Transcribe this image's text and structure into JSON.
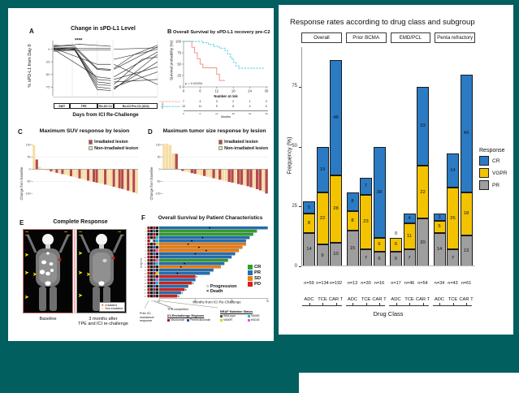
{
  "teal_bg": "#015f5f",
  "icons": {
    "arrow": "➤",
    "square": "■",
    "progression": "○",
    "death": "×"
  },
  "left_figure": {
    "panelE": {
      "letter": "E",
      "title": "Complete Response",
      "caption_left": "Baseline",
      "caption_right_1": "3 months after",
      "caption_right_2": "TPE and ICI re-challenge",
      "legend": [
        {
          "label": "Irradiated",
          "color": "#ee1111"
        },
        {
          "label": "Non-irradiated",
          "color": "#ffe600"
        }
      ]
    }
  },
  "chart_data": [
    {
      "id": "A",
      "type": "line",
      "letter": "A",
      "title": "Change in sPD-L1 Level",
      "significance": "****",
      "ylabel": "% sPD-L1 from Day 0",
      "xlabel": "Days from ICI Re-Challenge",
      "yticks": [
        0,
        -25,
        -50,
        -75
      ],
      "timeline_phases": [
        "SWT",
        "TPE",
        "Re-ICI C1",
        "Re-ICI Pre-C2 (ICI2)"
      ],
      "phase_widths": [
        16,
        26,
        16,
        42
      ],
      "lines": [
        [
          [
            0,
            3
          ],
          [
            20,
            1
          ],
          [
            42,
            -80
          ],
          [
            55,
            -82
          ]
        ],
        [
          [
            0,
            1
          ],
          [
            20,
            0
          ],
          [
            42,
            -75
          ],
          [
            55,
            -78
          ]
        ],
        [
          [
            0,
            0
          ],
          [
            20,
            -1
          ],
          [
            42,
            -70
          ],
          [
            55,
            -72
          ]
        ],
        [
          [
            0,
            -2
          ],
          [
            20,
            0
          ],
          [
            42,
            -65
          ],
          [
            55,
            -68
          ]
        ],
        [
          [
            0,
            2
          ],
          [
            20,
            1
          ],
          [
            42,
            -60
          ],
          [
            55,
            -62
          ]
        ],
        [
          [
            0,
            5
          ],
          [
            20,
            3
          ],
          [
            42,
            -40
          ],
          [
            55,
            -42
          ]
        ],
        [
          [
            0,
            8
          ],
          [
            20,
            6
          ],
          [
            42,
            -38
          ],
          [
            55,
            -40
          ]
        ],
        [
          [
            0,
            0
          ],
          [
            20,
            2
          ],
          [
            55,
            2
          ]
        ],
        [
          [
            0,
            -4
          ],
          [
            20,
            -2
          ],
          [
            55,
            -1
          ]
        ],
        [
          [
            0,
            6
          ],
          [
            25,
            10
          ],
          [
            55,
            6
          ]
        ],
        [
          [
            0,
            2
          ],
          [
            42,
            -30
          ],
          [
            55,
            -30
          ]
        ],
        [
          [
            0,
            0
          ],
          [
            42,
            -55
          ],
          [
            55,
            -58
          ]
        ],
        [
          [
            58,
            -80
          ],
          [
            100,
            -10
          ]
        ],
        [
          [
            58,
            -78
          ],
          [
            100,
            -25
          ]
        ],
        [
          [
            58,
            -75
          ],
          [
            100,
            -45
          ]
        ],
        [
          [
            58,
            -70
          ],
          [
            85,
            -20
          ],
          [
            100,
            -15
          ]
        ],
        [
          [
            58,
            -65
          ],
          [
            100,
            -60
          ]
        ],
        [
          [
            58,
            -60
          ],
          [
            100,
            -35
          ]
        ],
        [
          [
            58,
            -40
          ],
          [
            100,
            5
          ]
        ],
        [
          [
            58,
            -38
          ],
          [
            78,
            -10
          ],
          [
            100,
            8
          ]
        ],
        [
          [
            58,
            0
          ],
          [
            100,
            3
          ]
        ],
        [
          [
            58,
            -55
          ],
          [
            100,
            -5
          ]
        ],
        [
          [
            58,
            -30
          ],
          [
            100,
            -70
          ]
        ],
        [
          [
            58,
            -20
          ],
          [
            100,
            0
          ]
        ]
      ]
    },
    {
      "id": "B",
      "type": "line",
      "letter": "B",
      "title": "Overall Survival by sPD-L1 recovery pre-C2",
      "ylabel": "Survival probability (%)",
      "xlabel": "Months",
      "yticks": [
        100,
        75,
        50,
        25,
        0
      ],
      "xticks": [
        0,
        6,
        12,
        18,
        24,
        30
      ],
      "pvalue": "p = 0.00034",
      "risk_title": "Number at risk",
      "strata_axis_label": "Strata",
      "series": [
        {
          "name": "Incomplete recovery",
          "color": "#f2928c",
          "dashed": false,
          "steps": [
            [
              0,
              100
            ],
            [
              3,
              87
            ],
            [
              4,
              75
            ],
            [
              5,
              62
            ],
            [
              6,
              50
            ],
            [
              7,
              42
            ],
            [
              12,
              28
            ],
            [
              13,
              14
            ],
            [
              15,
              14
            ]
          ],
          "at_risk": [
            7,
            4,
            3,
            2,
            1,
            0
          ]
        },
        {
          "name": "Complete recovery",
          "color": "#30c7d6",
          "dashed": true,
          "steps": [
            [
              0,
              100
            ],
            [
              7,
              97
            ],
            [
              9,
              93
            ],
            [
              11,
              89
            ],
            [
              13,
              85
            ],
            [
              15,
              80
            ],
            [
              16,
              72
            ],
            [
              17,
              63
            ],
            [
              18,
              54
            ],
            [
              19,
              46
            ],
            [
              20,
              41
            ],
            [
              29,
              41
            ]
          ],
          "at_risk": [
            13,
            11,
            9,
            6,
            2,
            0
          ]
        }
      ]
    },
    {
      "id": "C",
      "type": "bar",
      "letter": "C",
      "title": "Maximum SUV response by lesion",
      "ylabel": "Change from baseline",
      "yticks": [
        100,
        50,
        0,
        -50,
        -100
      ],
      "legend": [
        {
          "label": "Irradiated lesion",
          "color": "#b5494a"
        },
        {
          "label": "Non-irradiated lesion",
          "color": "#f6dda6"
        }
      ],
      "values": [
        100,
        40,
        10,
        -2,
        -4,
        -6,
        -9,
        -12,
        -15,
        -18,
        -20,
        -23,
        -26,
        -29,
        -32,
        -35,
        -38,
        -41,
        -44,
        -47,
        -50,
        -52,
        -55,
        -58,
        -60,
        -63,
        -66,
        -69,
        -72,
        -75,
        -78,
        -81,
        -85,
        -88,
        -91,
        -95,
        -100
      ],
      "irradiated": [
        0,
        1,
        0,
        0,
        0,
        0,
        1,
        0,
        1,
        0,
        1,
        0,
        0,
        1,
        0,
        0,
        1,
        0,
        0,
        1,
        0,
        1,
        1,
        0,
        0,
        1,
        0,
        0,
        1,
        0,
        1,
        1,
        0,
        1,
        0,
        1,
        0
      ]
    },
    {
      "id": "D",
      "type": "bar",
      "letter": "D",
      "title": "Maximum tumor size response by lesion",
      "ylabel": "Change from baseline",
      "yticks": [
        100,
        50,
        0,
        -50,
        -100
      ],
      "legend": [
        {
          "label": "Irradiated lesion",
          "color": "#b5494a"
        },
        {
          "label": "Non-irradiated lesion",
          "color": "#f6dda6"
        }
      ],
      "values": [
        105,
        105,
        100,
        65,
        63,
        -4,
        -7,
        -10,
        -13,
        -16,
        -19,
        -22,
        -25,
        -28,
        -31,
        -34,
        -37,
        -40,
        -43,
        -46,
        -49,
        -52,
        -55,
        -58,
        -61,
        -64,
        -67,
        -70,
        -74,
        -78,
        -82,
        -87,
        -92,
        -100
      ],
      "irradiated": [
        0,
        0,
        0,
        0,
        1,
        0,
        1,
        0,
        0,
        1,
        1,
        0,
        0,
        1,
        0,
        0,
        1,
        0,
        1,
        0,
        0,
        1,
        1,
        0,
        1,
        1,
        0,
        1,
        1,
        0,
        1,
        1,
        0,
        1
      ]
    },
    {
      "id": "F",
      "type": "bar",
      "letter": "F",
      "title": "Overall Survival by Patient Characteristics",
      "ylabel": "Subjects",
      "xlabel": "Months from ICI Re-Challenge",
      "xticks": [
        0,
        10,
        20,
        30
      ],
      "legend": [
        {
          "label": "CR",
          "color": "#2fa12e"
        },
        {
          "label": "PR",
          "color": "#2171b5"
        },
        {
          "label": "SD",
          "color": "#f07f10"
        },
        {
          "label": "PD",
          "color": "#d8201f"
        }
      ],
      "marker_legend": [
        {
          "symbol": "○",
          "label": "Progression"
        },
        {
          "symbol": "×",
          "label": "Death"
        }
      ],
      "chip_colors": {
        "r": "#a50f15",
        "k": "#141414",
        "b": "#2050a0",
        "c": "#00c2d8",
        "y": "#d9d000",
        "m": "#f649d8",
        "w": "#f2f2f2",
        "g": "#6f6f6f"
      },
      "annotations": {
        "prior_1": "Prior ICI",
        "prior_2": "resistance/",
        "prior_3": "response",
        "tpe": "TPE completion",
        "regimen_title": "ICI Rechallenge Regimen",
        "regimen": [
          {
            "label": "Nivolumab",
            "color": "#a50f15"
          },
          {
            "label": "Pembrolizumab",
            "color": "#2050a0"
          }
        ],
        "braf_title": "BRAF Mutation Status",
        "braf": [
          {
            "label": "Wild-type",
            "color": "#555555"
          },
          {
            "label": "V600E",
            "color": "#00c2d8"
          },
          {
            "label": "V600R",
            "color": "#d9d000"
          },
          {
            "label": "K601E",
            "color": "#f649d8"
          }
        ]
      },
      "rows": [
        {
          "len": 30,
          "response": "PR",
          "progression": 14,
          "death": false,
          "chips": [
            "r",
            "k",
            "r",
            "k"
          ]
        },
        {
          "len": 27,
          "response": "CR",
          "progression": null,
          "death": false,
          "chips": [
            "r",
            "k",
            "b",
            "k"
          ]
        },
        {
          "len": 26,
          "response": "CR",
          "progression": null,
          "death": false,
          "chips": [
            "k",
            "k",
            "r",
            "k"
          ]
        },
        {
          "len": 25,
          "response": "PR",
          "progression": 12,
          "death": false,
          "chips": [
            "r",
            "k",
            "r",
            "c"
          ]
        },
        {
          "len": 24,
          "response": "PR",
          "progression": 9,
          "death": false,
          "chips": [
            "r",
            "w",
            "b",
            "c"
          ]
        },
        {
          "len": 24,
          "response": "SD",
          "progression": 8,
          "death": false,
          "chips": [
            "r",
            "k",
            "r",
            "y"
          ]
        },
        {
          "len": 23,
          "response": "SD",
          "progression": 11,
          "death": false,
          "chips": [
            "k",
            "k",
            "b",
            "k"
          ]
        },
        {
          "len": 22,
          "response": "SD",
          "progression": 13,
          "death": false,
          "chips": [
            "r",
            "k",
            "r",
            "m"
          ]
        },
        {
          "len": 21,
          "response": "PR",
          "progression": 10,
          "death": false,
          "chips": [
            "r",
            "k",
            "b",
            "k"
          ]
        },
        {
          "len": 20,
          "response": "PR",
          "progression": null,
          "death": false,
          "chips": [
            "r",
            "k",
            "r",
            "k"
          ]
        },
        {
          "len": 19,
          "response": "CR",
          "progression": null,
          "death": false,
          "chips": [
            "r",
            "k",
            "r",
            "m"
          ]
        },
        {
          "len": 18,
          "response": "PR",
          "progression": 7,
          "death": false,
          "chips": [
            "k",
            "k",
            "b",
            "c"
          ]
        },
        {
          "len": 17,
          "response": "SD",
          "progression": 6,
          "death": false,
          "chips": [
            "r",
            "k",
            "r",
            "k"
          ]
        },
        {
          "len": 15,
          "response": "PR",
          "progression": null,
          "death": false,
          "chips": [
            "r",
            "k",
            "b",
            "k"
          ]
        },
        {
          "len": 14,
          "response": "PR",
          "progression": 5,
          "death": false,
          "chips": [
            "r",
            "k",
            "r",
            "y"
          ]
        },
        {
          "len": 10,
          "response": "PD",
          "progression": null,
          "death": true,
          "chips": [
            "r",
            "k",
            "r",
            "k"
          ]
        },
        {
          "len": 10,
          "response": "PR",
          "progression": null,
          "death": false,
          "chips": [
            "r",
            "k",
            "b",
            "m"
          ]
        },
        {
          "len": 9,
          "response": "PD",
          "progression": null,
          "death": true,
          "chips": [
            "r",
            "k",
            "r",
            "c"
          ]
        },
        {
          "len": 8,
          "response": "PR",
          "progression": null,
          "death": false,
          "chips": [
            "k",
            "k",
            "b",
            "k"
          ]
        },
        {
          "len": 7,
          "response": "PD",
          "progression": null,
          "death": true,
          "chips": [
            "r",
            "k",
            "r",
            "k"
          ]
        },
        {
          "len": 6,
          "response": "PR",
          "progression": null,
          "death": true,
          "chips": [
            "r",
            "k",
            "b",
            "k"
          ]
        },
        {
          "len": 5,
          "response": "PD",
          "progression": null,
          "death": true,
          "chips": [
            "r",
            "k",
            "r",
            "k"
          ]
        }
      ]
    },
    {
      "id": "response_rates",
      "type": "bar",
      "title": "Response rates according to drug class and subgroup",
      "ylabel": "Frequency (%)",
      "xlabel": "Drug Class",
      "yticks": [
        0,
        25,
        50,
        75
      ],
      "categories": [
        "ADC",
        "TCE",
        "CAR T"
      ],
      "legend_title": "Response",
      "colors": {
        "CR": "#2b7bc4",
        "VGPR": "#f3c300",
        "PR": "#9e9e9e"
      },
      "legend_order": [
        "CR",
        "VGPR",
        "PR"
      ],
      "facets": [
        {
          "label": "Overall",
          "n": [
            "n=59",
            "n=134",
            "n=192"
          ],
          "PR": [
            14,
            9,
            10
          ],
          "VGPR": [
            8,
            22,
            28
          ],
          "CR": [
            5,
            19,
            48
          ]
        },
        {
          "label": "Prior BCMA",
          "n": [
            "n=13",
            "n=30",
            "n=16"
          ],
          "PR": [
            15,
            7,
            6
          ],
          "VGPR": [
            8,
            23,
            6
          ],
          "CR": [
            8,
            7,
            38
          ]
        },
        {
          "label": "EMD/PCL",
          "n": [
            "n=17",
            "n=46",
            "n=54"
          ],
          "PR": [
            6,
            7,
            20
          ],
          "VGPR": [
            6,
            11,
            22
          ],
          "CR": [
            0,
            4,
            33
          ]
        },
        {
          "label": "Penta refractory",
          "n": [
            "n=34",
            "n=43",
            "n=61"
          ],
          "PR": [
            14,
            7,
            13
          ],
          "VGPR": [
            5,
            26,
            18
          ],
          "CR": [
            3,
            14,
            49
          ]
        }
      ]
    }
  ]
}
